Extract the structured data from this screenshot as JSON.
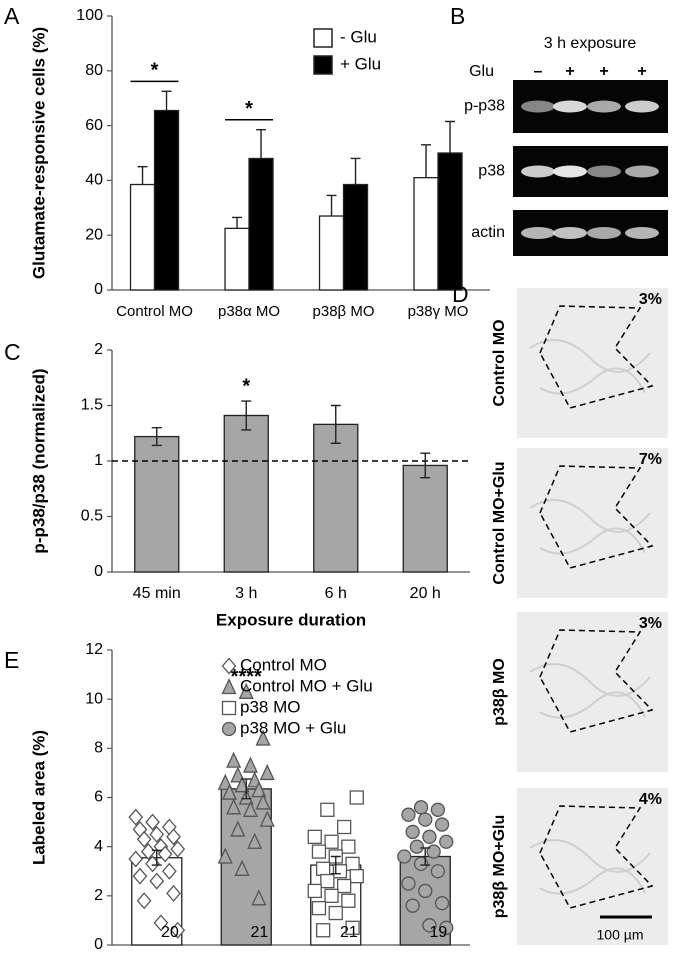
{
  "chart_data": [
    {
      "type": "bar",
      "panel": "A",
      "ylabel": "Glutamate-responsive cells (%)",
      "categories": [
        "Control MO",
        "p38α MO",
        "p38β MO",
        "p38γ MO"
      ],
      "series": [
        {
          "name": "- Glu",
          "color": "#ffffff",
          "values": [
            38.5,
            22.5,
            27,
            41
          ],
          "errors": [
            6.5,
            4,
            7.5,
            12
          ]
        },
        {
          "name": "+ Glu",
          "color": "#000000",
          "values": [
            65.5,
            48,
            38.5,
            50
          ],
          "errors": [
            7,
            10.5,
            9.5,
            11.5
          ]
        }
      ],
      "error_bars": "up",
      "ylim": [
        0,
        100
      ],
      "yticks": [
        0,
        20,
        40,
        60,
        80,
        100
      ],
      "legend": "top-right",
      "annotations": [
        {
          "text": "*",
          "category": 0
        },
        {
          "text": "*",
          "category": 1
        }
      ]
    },
    {
      "type": "bar",
      "panel": "C",
      "ylabel": "p-p38/p38 (normalized)",
      "xlabel": "Exposure duration",
      "categories": [
        "45 min",
        "3 h",
        "6 h",
        "20 h"
      ],
      "values": [
        1.22,
        1.41,
        1.33,
        0.96
      ],
      "errors": [
        0.08,
        0.13,
        0.17,
        0.11
      ],
      "color": "#a6a6a6",
      "error_bars": "both",
      "ylim": [
        0,
        2
      ],
      "yticks": [
        0,
        0.5,
        1,
        1.5,
        2
      ],
      "reference_line": 1,
      "annotations": [
        {
          "text": "*",
          "category": 1
        }
      ]
    },
    {
      "type": "bar",
      "panel": "E",
      "ylabel": "Labeled area (%)",
      "series": [
        {
          "name": "Control MO",
          "color": "#ffffff",
          "marker": "diamond",
          "marker_color": "#ffffff",
          "value": 3.55,
          "error": 0.3,
          "n": 20,
          "points": [
            5.2,
            5.0,
            4.8,
            4.7,
            4.5,
            4.4,
            4.3,
            4.0,
            3.9,
            3.8,
            3.7,
            3.5,
            3.3,
            3.0,
            2.8,
            2.6,
            2.1,
            1.8,
            0.9,
            0.6
          ]
        },
        {
          "name": "Control MO + Glu",
          "color": "#a6a6a6",
          "marker": "triangle",
          "marker_color": "#a6a6a6",
          "value": 6.35,
          "error": 0.4,
          "n": 21,
          "points": [
            10.3,
            8.4,
            7.5,
            7.3,
            7.0,
            6.9,
            6.7,
            6.6,
            6.5,
            6.3,
            6.2,
            6.0,
            5.8,
            5.6,
            5.5,
            5.1,
            4.7,
            4.2,
            3.6,
            3.1,
            1.9
          ]
        },
        {
          "name": "p38 MO",
          "color": "#ffffff",
          "marker": "square",
          "marker_color": "#ffffff",
          "value": 3.25,
          "error": 0.35,
          "n": 21,
          "points": [
            6.0,
            5.5,
            4.8,
            4.4,
            4.2,
            4.0,
            3.8,
            3.6,
            3.3,
            3.1,
            3.0,
            2.8,
            2.6,
            2.4,
            2.2,
            2.0,
            1.8,
            1.5,
            1.3,
            0.7,
            0.6
          ]
        },
        {
          "name": "p38 MO + Glu",
          "color": "#a6a6a6",
          "marker": "circle",
          "marker_color": "#a6a6a6",
          "value": 3.6,
          "error": 0.35,
          "n": 19,
          "points": [
            5.6,
            5.5,
            5.3,
            5.1,
            4.9,
            4.6,
            4.4,
            4.2,
            4.0,
            3.8,
            3.6,
            3.3,
            3.0,
            2.5,
            2.2,
            1.7,
            1.6,
            0.8,
            0.7
          ]
        }
      ],
      "error_bars": "both",
      "ylim": [
        0,
        12
      ],
      "yticks": [
        0,
        2,
        4,
        6,
        8,
        10,
        12
      ],
      "legend": "top-right",
      "annotations": [
        {
          "text": "****",
          "series": 1
        }
      ]
    }
  ],
  "blot": {
    "panel": "B",
    "title": "3 h exposure",
    "row_label": "Glu",
    "lanes": [
      "–",
      "+",
      "+",
      "+"
    ],
    "bands": [
      "p-p38",
      "p38",
      "actin"
    ]
  },
  "micrographs": {
    "panel": "D",
    "images": [
      {
        "label": "Control MO",
        "percent": "3%"
      },
      {
        "label": "Control MO+Glu",
        "percent": "7%"
      },
      {
        "label": "p38β MO",
        "percent": "3%"
      },
      {
        "label": "p38β MO+Glu",
        "percent": "4%"
      }
    ],
    "scale_bar": "100 µm"
  }
}
